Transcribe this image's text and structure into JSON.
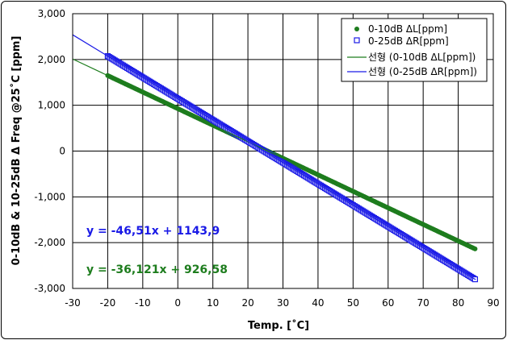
{
  "chart_data": {
    "type": "scatter",
    "xlabel": "Temp. [˚C]",
    "ylabel": "0-10dB & 10-25dB Δ Freq @25˚C [ppm]",
    "xlim": [
      -30,
      90
    ],
    "ylim": [
      -3000,
      3000
    ],
    "x_ticks": [
      -30,
      -20,
      -10,
      0,
      10,
      20,
      30,
      40,
      50,
      60,
      70,
      80,
      90
    ],
    "x_tick_labels": [
      "-30",
      "-20",
      "-10",
      "0",
      "10",
      "20",
      "30",
      "40",
      "50",
      "60",
      "70",
      "80",
      "90"
    ],
    "y_ticks": [
      3000,
      2000,
      1000,
      0,
      -1000,
      -2000,
      -3000
    ],
    "y_tick_labels": [
      "3,000",
      "2,000",
      "1,000",
      "0",
      "-1,000",
      "-2,000",
      "-3,000"
    ],
    "grid": true,
    "legend_position": "top-right",
    "series": [
      {
        "name": "0-10dB ΔL[ppm]",
        "kind": "points",
        "marker": "filled-circle",
        "color": "#1e7d1e",
        "x_range": [
          -20,
          85
        ],
        "slope": -36.121,
        "intercept": 926.58
      },
      {
        "name": "0-25dB ΔR[ppm]",
        "kind": "points",
        "marker": "square",
        "color": "#1a1ae6",
        "x_range": [
          -20,
          85
        ],
        "slope": -46.51,
        "intercept": 1143.9
      },
      {
        "name": "선형 (0-10dB ΔL[ppm])",
        "kind": "trendline",
        "color": "#1e7d1e",
        "x_range": [
          -30,
          85
        ],
        "slope": -36.121,
        "intercept": 926.58
      },
      {
        "name": "선형 (0-25dB ΔR[ppm])",
        "kind": "trendline",
        "color": "#1a1ae6",
        "x_range": [
          -30,
          85
        ],
        "slope": -46.51,
        "intercept": 1143.9
      }
    ],
    "annotations": [
      {
        "text": "y = -46,51x + 1143,9",
        "color": "#1a1ae6"
      },
      {
        "text": "y = -36,121x + 926,58",
        "color": "#1e7d1e"
      }
    ]
  }
}
